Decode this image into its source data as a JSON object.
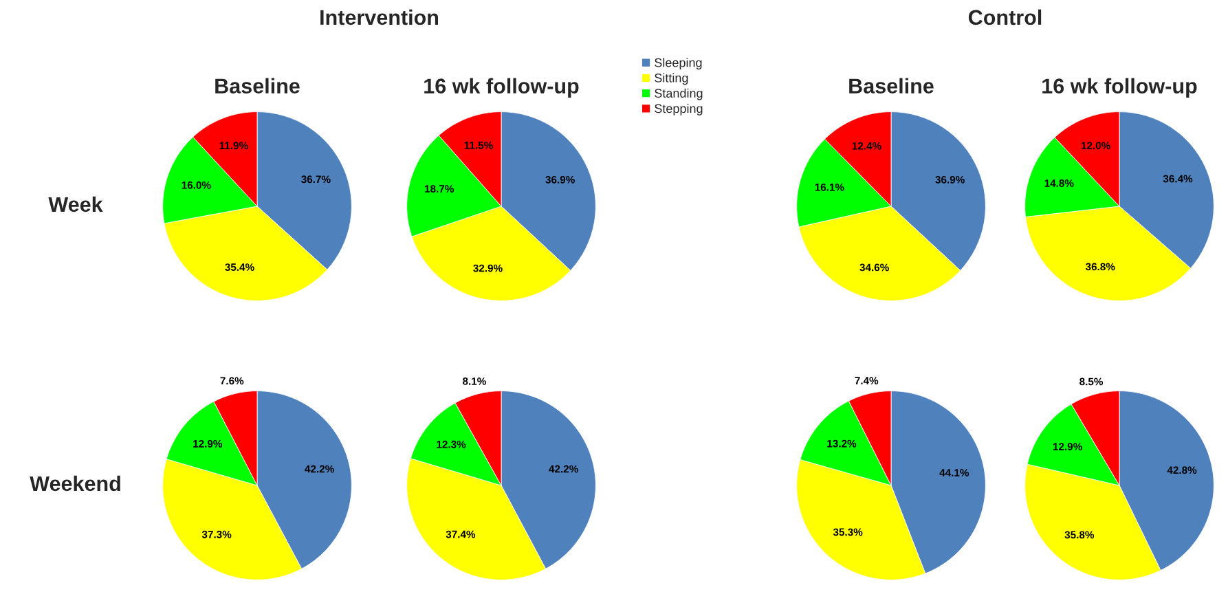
{
  "chart_data": [
    {
      "type": "pie",
      "title": "Baseline",
      "ylabel": "Week",
      "annotations": [
        "Intervention"
      ],
      "legend": "right",
      "categories": [
        "Sleeping",
        "Sitting",
        "Standing",
        "Stepping"
      ],
      "values": [
        36.7,
        35.4,
        16.0,
        11.9
      ],
      "colors": [
        "#4f81bd",
        "#ffff00",
        "#00ff00",
        "#ff0000"
      ],
      "value_labels": [
        "36.7%",
        "35.4%",
        "16.0%",
        "11.9%"
      ]
    },
    {
      "type": "pie",
      "title": "16 wk follow-up",
      "categories": [
        null,
        null,
        null,
        null
      ],
      "values": [
        36.9,
        32.9,
        18.7,
        11.5
      ],
      "colors": [
        "#4f81bd",
        "#ffff00",
        "#00ff00",
        "#ff0000"
      ],
      "value_labels": [
        "36.9%",
        "32.9%",
        "18.7%",
        "11.5%"
      ]
    },
    {
      "type": "pie",
      "title": "Baseline",
      "annotations": [
        "Control"
      ],
      "categories": [
        null,
        null,
        null,
        null
      ],
      "values": [
        36.9,
        34.6,
        16.1,
        12.4
      ],
      "colors": [
        "#4f81bd",
        "#ffff00",
        "#00ff00",
        "#ff0000"
      ],
      "value_labels": [
        "36.9%",
        "34.6%",
        "16.1%",
        "12.4%"
      ]
    },
    {
      "type": "pie",
      "title": "16 wk follow-up",
      "categories": [
        null,
        null,
        null,
        null
      ],
      "values": [
        36.4,
        36.8,
        14.8,
        12.0
      ],
      "colors": [
        "#4f81bd",
        "#ffff00",
        "#00ff00",
        "#ff0000"
      ],
      "value_labels": [
        "36.4%",
        "36.8%",
        "14.8%",
        "12.0%"
      ]
    },
    {
      "type": "pie",
      "ylabel": "Weekend",
      "categories": [
        null,
        null,
        null,
        null
      ],
      "values": [
        42.2,
        37.3,
        12.9,
        7.6
      ],
      "colors": [
        "#4f81bd",
        "#ffff00",
        "#00ff00",
        "#ff0000"
      ],
      "value_labels": [
        "42.2%",
        "37.3%",
        "12.9%",
        "7.6%"
      ]
    },
    {
      "type": "pie",
      "categories": [
        null,
        null,
        null,
        null
      ],
      "values": [
        42.2,
        37.4,
        12.3,
        8.1
      ],
      "colors": [
        "#4f81bd",
        "#ffff00",
        "#00ff00",
        "#ff0000"
      ],
      "value_labels": [
        "42.2%",
        "37.4%",
        "12.3%",
        "8.1%"
      ]
    },
    {
      "type": "pie",
      "categories": [
        null,
        null,
        null,
        null
      ],
      "values": [
        44.1,
        35.3,
        13.2,
        7.4
      ],
      "colors": [
        "#4f81bd",
        "#ffff00",
        "#00ff00",
        "#ff0000"
      ],
      "value_labels": [
        "44.1%",
        "35.3%",
        "13.2%",
        "7.4%"
      ]
    },
    {
      "type": "pie",
      "categories": [
        null,
        null,
        null,
        null
      ],
      "values": [
        42.8,
        35.8,
        12.9,
        8.5
      ],
      "colors": [
        "#4f81bd",
        "#ffff00",
        "#00ff00",
        "#ff0000"
      ],
      "value_labels": [
        "42.8%",
        "35.8%",
        "12.9%",
        "8.5%"
      ]
    }
  ]
}
